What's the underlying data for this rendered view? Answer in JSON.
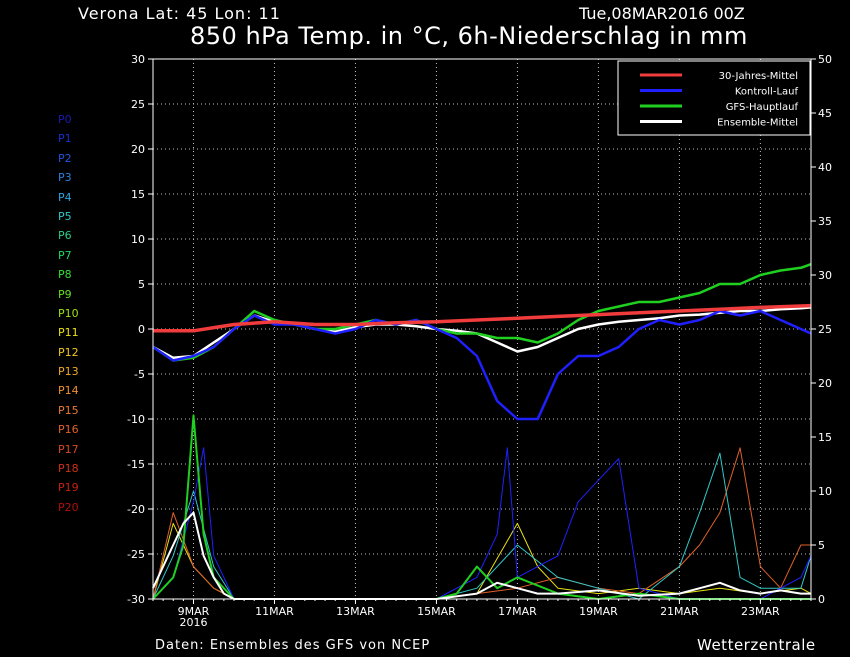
{
  "header": {
    "location": "Verona   Lat: 45 Lon: 11",
    "date": "Tue,08MAR2016 00Z",
    "title": "850 hPa Temp. in °C, 6h-Niederschlag in mm"
  },
  "footer": {
    "source": "Daten: Ensembles des GFS von NCEP",
    "brand": "Wetterzentrale"
  },
  "members": [
    {
      "label": "P0",
      "color": "#1a1ab4"
    },
    {
      "label": "P1",
      "color": "#1a2fd0"
    },
    {
      "label": "P2",
      "color": "#1f55e0"
    },
    {
      "label": "P3",
      "color": "#2a80e0"
    },
    {
      "label": "P4",
      "color": "#2fa6e0"
    },
    {
      "label": "P5",
      "color": "#30c8c8"
    },
    {
      "label": "P6",
      "color": "#28d088"
    },
    {
      "label": "P7",
      "color": "#20d860"
    },
    {
      "label": "P8",
      "color": "#30e030"
    },
    {
      "label": "P9",
      "color": "#60e020"
    },
    {
      "label": "P10",
      "color": "#a0e010"
    },
    {
      "label": "P11",
      "color": "#e8e010"
    },
    {
      "label": "P12",
      "color": "#f0c820"
    },
    {
      "label": "P13",
      "color": "#f0a828"
    },
    {
      "label": "P14",
      "color": "#f09030"
    },
    {
      "label": "P15",
      "color": "#e87830"
    },
    {
      "label": "P16",
      "color": "#e06028"
    },
    {
      "label": "P17",
      "color": "#d84820"
    },
    {
      "label": "P18",
      "color": "#d03018"
    },
    {
      "label": "P19",
      "color": "#c82010"
    },
    {
      "label": "P20",
      "color": "#b01008"
    }
  ],
  "chart_data": {
    "type": "line",
    "title": "850 hPa Temp. in °C, 6h-Niederschlag in mm",
    "x_ticks": [
      {
        "label": "9MAR",
        "day": 1
      },
      {
        "label": "11MAR",
        "day": 3
      },
      {
        "label": "13MAR",
        "day": 5
      },
      {
        "label": "15MAR",
        "day": 7
      },
      {
        "label": "17MAR",
        "day": 9
      },
      {
        "label": "19MAR",
        "day": 11
      },
      {
        "label": "21MAR",
        "day": 13
      },
      {
        "label": "23MAR",
        "day": 15
      }
    ],
    "x_sublabel": "2016",
    "xlim_days": [
      0,
      16.25
    ],
    "y_left": {
      "ylim": [
        -30,
        30
      ],
      "ticks": [
        30,
        25,
        20,
        15,
        10,
        5,
        0,
        -5,
        -10,
        -15,
        -20,
        -25,
        -30
      ]
    },
    "y_right": {
      "ylim": [
        0,
        50
      ],
      "ticks": [
        50,
        45,
        40,
        35,
        30,
        25,
        20,
        15,
        10,
        5,
        0
      ]
    },
    "grid": true,
    "legend_position": "top-right",
    "legend": [
      {
        "name": "30-Jahres-Mittel",
        "color": "#f03c3c"
      },
      {
        "name": "Kontroll-Lauf",
        "color": "#2020ff"
      },
      {
        "name": "GFS-Hauptlauf",
        "color": "#20d020"
      },
      {
        "name": "Ensemble-Mittel",
        "color": "#ffffff"
      }
    ],
    "temperature_series": [
      {
        "name": "30-Jahres-Mittel",
        "color": "#f03c3c",
        "width": 3.5,
        "x": [
          0,
          1,
          2,
          3,
          4,
          5,
          6,
          7,
          8,
          9,
          10,
          11,
          12,
          13,
          14,
          15,
          16.25
        ],
        "y": [
          -0.2,
          -0.2,
          0.5,
          0.8,
          0.5,
          0.5,
          0.7,
          0.8,
          1.0,
          1.2,
          1.4,
          1.6,
          1.8,
          2.0,
          2.2,
          2.4,
          2.6
        ]
      },
      {
        "name": "Kontroll-Lauf",
        "color": "#2020ff",
        "width": 2.5,
        "x": [
          0,
          0.5,
          1,
          1.5,
          2,
          2.5,
          3,
          3.5,
          4,
          4.5,
          5,
          5.5,
          6,
          6.5,
          7,
          7.5,
          8,
          8.5,
          9,
          9.5,
          10,
          10.5,
          11,
          11.5,
          12,
          12.5,
          13,
          13.5,
          14,
          14.5,
          15,
          15.5,
          16,
          16.25
        ],
        "y": [
          -2,
          -3.5,
          -3,
          -2,
          0,
          1.5,
          0.5,
          0.5,
          0,
          -0.5,
          0,
          1,
          0.5,
          1,
          0,
          -1,
          -3,
          -8,
          -10,
          -10,
          -5,
          -3,
          -3,
          -2,
          0,
          1,
          0.5,
          1,
          2,
          1.5,
          2,
          1,
          0,
          -0.5
        ]
      },
      {
        "name": "GFS-Hauptlauf",
        "color": "#20d020",
        "width": 2.5,
        "x": [
          0,
          0.5,
          1,
          1.5,
          2,
          2.5,
          3,
          3.5,
          4,
          4.5,
          5,
          5.5,
          6,
          6.5,
          7,
          7.5,
          8,
          8.5,
          9,
          9.5,
          10,
          10.5,
          11,
          11.5,
          12,
          12.5,
          13,
          13.5,
          14,
          14.5,
          15,
          15.5,
          16,
          16.25
        ],
        "y": [
          -2,
          -3.5,
          -3.2,
          -2,
          0,
          2,
          1,
          0.5,
          0,
          0,
          0.5,
          1,
          0.5,
          1,
          0,
          -0.5,
          -0.5,
          -1,
          -1,
          -1.5,
          -0.5,
          1,
          2,
          2.5,
          3,
          3,
          3.5,
          4,
          5,
          5,
          6,
          6.5,
          6.8,
          7.2
        ]
      },
      {
        "name": "Ensemble-Mittel",
        "color": "#ffffff",
        "width": 2.5,
        "x": [
          0,
          0.5,
          1,
          1.5,
          2,
          2.5,
          3,
          3.5,
          4,
          4.5,
          5,
          5.5,
          6,
          6.5,
          7,
          7.5,
          8,
          8.5,
          9,
          9.5,
          10,
          10.5,
          11,
          11.5,
          12,
          12.5,
          13,
          13.5,
          14,
          14.5,
          15,
          15.5,
          16,
          16.25
        ],
        "y": [
          -2,
          -3.2,
          -3,
          -1.5,
          0,
          1.5,
          0.8,
          0.5,
          0,
          -0.3,
          0.2,
          0.5,
          0.5,
          0.3,
          0,
          -0.2,
          -0.5,
          -1.5,
          -2.5,
          -2,
          -1,
          0,
          0.5,
          0.8,
          1,
          1.2,
          1.5,
          1.6,
          1.8,
          2,
          2,
          2.2,
          2.3,
          2.4
        ]
      }
    ],
    "precipitation_series": [
      {
        "name": "Ensemble-Mittel",
        "color": "#ffffff",
        "width": 2,
        "x": [
          0,
          0.25,
          0.5,
          0.75,
          1,
          1.25,
          1.5,
          1.75,
          2,
          3,
          4,
          5,
          6,
          7,
          8,
          8.5,
          9,
          9.5,
          10,
          11,
          12,
          13,
          14,
          14.5,
          15,
          15.5,
          16,
          16.25
        ],
        "y": [
          1,
          3,
          5,
          7,
          8,
          4,
          2,
          0.5,
          0,
          0,
          0,
          0,
          0,
          0,
          0.5,
          1.5,
          1,
          0.5,
          0.5,
          0.8,
          0.3,
          0.5,
          1.5,
          0.8,
          0.5,
          0.8,
          0.5,
          0.5
        ]
      },
      {
        "name": "GFS-Hauptlauf",
        "color": "#20d020",
        "width": 2,
        "x": [
          0,
          0.5,
          0.75,
          1,
          1.25,
          1.5,
          2,
          4,
          6,
          7,
          7.5,
          8,
          8.5,
          9,
          10,
          11,
          12,
          13,
          14,
          15,
          16.25
        ],
        "y": [
          0,
          2,
          5,
          17,
          6,
          2,
          0,
          0,
          0,
          0,
          0.5,
          3,
          1,
          2,
          0.5,
          0,
          0.5,
          0,
          0,
          0,
          0
        ]
      },
      {
        "name": "Kontroll-Lauf",
        "color": "#2020ff",
        "width": 1,
        "x": [
          0,
          0.5,
          1,
          1.25,
          1.5,
          2,
          7,
          8,
          8.5,
          8.75,
          9,
          9.5,
          10,
          10.5,
          11,
          11.5,
          12,
          13,
          14,
          15,
          16,
          16.25
        ],
        "y": [
          0,
          2,
          9,
          14,
          4,
          0,
          0,
          2,
          6,
          14,
          2,
          3,
          4,
          9,
          11,
          13,
          1,
          0,
          0,
          0,
          2,
          4
        ]
      },
      {
        "name": "P5",
        "color": "#30c8c8",
        "width": 1,
        "x": [
          0,
          0.5,
          1,
          1.5,
          2,
          7,
          8,
          9,
          10,
          11,
          12,
          13,
          13.5,
          14,
          14.5,
          15,
          16,
          16.25
        ],
        "y": [
          0,
          4,
          10,
          3,
          0,
          0,
          1,
          5,
          2,
          1,
          0,
          3,
          8,
          13.5,
          2,
          1,
          1,
          4
        ]
      },
      {
        "name": "P16",
        "color": "#e06028",
        "width": 1,
        "x": [
          0,
          0.5,
          1,
          1.5,
          2,
          7,
          8,
          9,
          10,
          11,
          12,
          13,
          13.5,
          14,
          14.5,
          15,
          15.5,
          16,
          16.25
        ],
        "y": [
          0,
          8,
          3,
          1,
          0,
          0,
          0.5,
          1,
          2,
          1,
          0.5,
          3,
          5,
          8,
          14,
          3,
          1,
          5,
          5
        ]
      },
      {
        "name": "P11",
        "color": "#e8e010",
        "width": 1,
        "x": [
          0,
          0.5,
          1,
          1.5,
          2,
          7,
          8,
          9,
          9.5,
          10,
          11,
          12,
          13,
          14,
          15,
          16,
          16.25
        ],
        "y": [
          0,
          7,
          3,
          1,
          0,
          0,
          0.5,
          7,
          3,
          1,
          0.5,
          1,
          0.5,
          1,
          0.5,
          1,
          0.5
        ]
      }
    ]
  }
}
